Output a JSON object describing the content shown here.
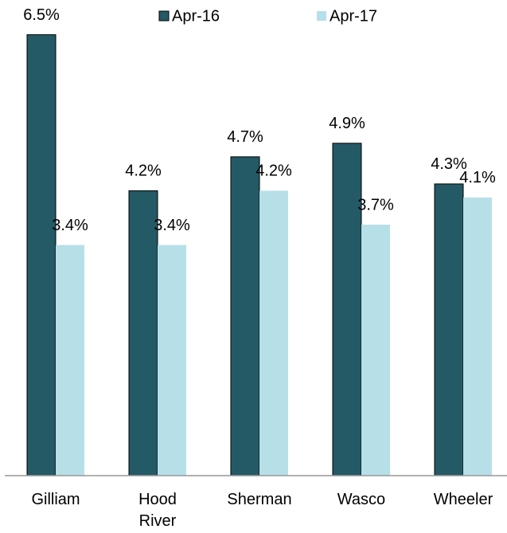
{
  "chart_data": {
    "type": "bar",
    "categories": [
      "Gilliam",
      "Hood River",
      "Sherman",
      "Wasco",
      "Wheeler"
    ],
    "series": [
      {
        "name": "Apr-16",
        "color": "#245a66",
        "values": [
          6.5,
          4.2,
          4.7,
          4.9,
          4.3
        ],
        "value_labels": [
          "6.5%",
          "4.2%",
          "4.7%",
          "4.9%",
          "4.3%"
        ]
      },
      {
        "name": "Apr-17",
        "color": "#b7dfe8",
        "values": [
          3.4,
          3.4,
          4.2,
          3.7,
          4.1
        ],
        "value_labels": [
          "3.4%",
          "3.4%",
          "4.2%",
          "3.7%",
          "4.1%"
        ]
      }
    ],
    "ylim": [
      0,
      7
    ],
    "legend": "top"
  }
}
